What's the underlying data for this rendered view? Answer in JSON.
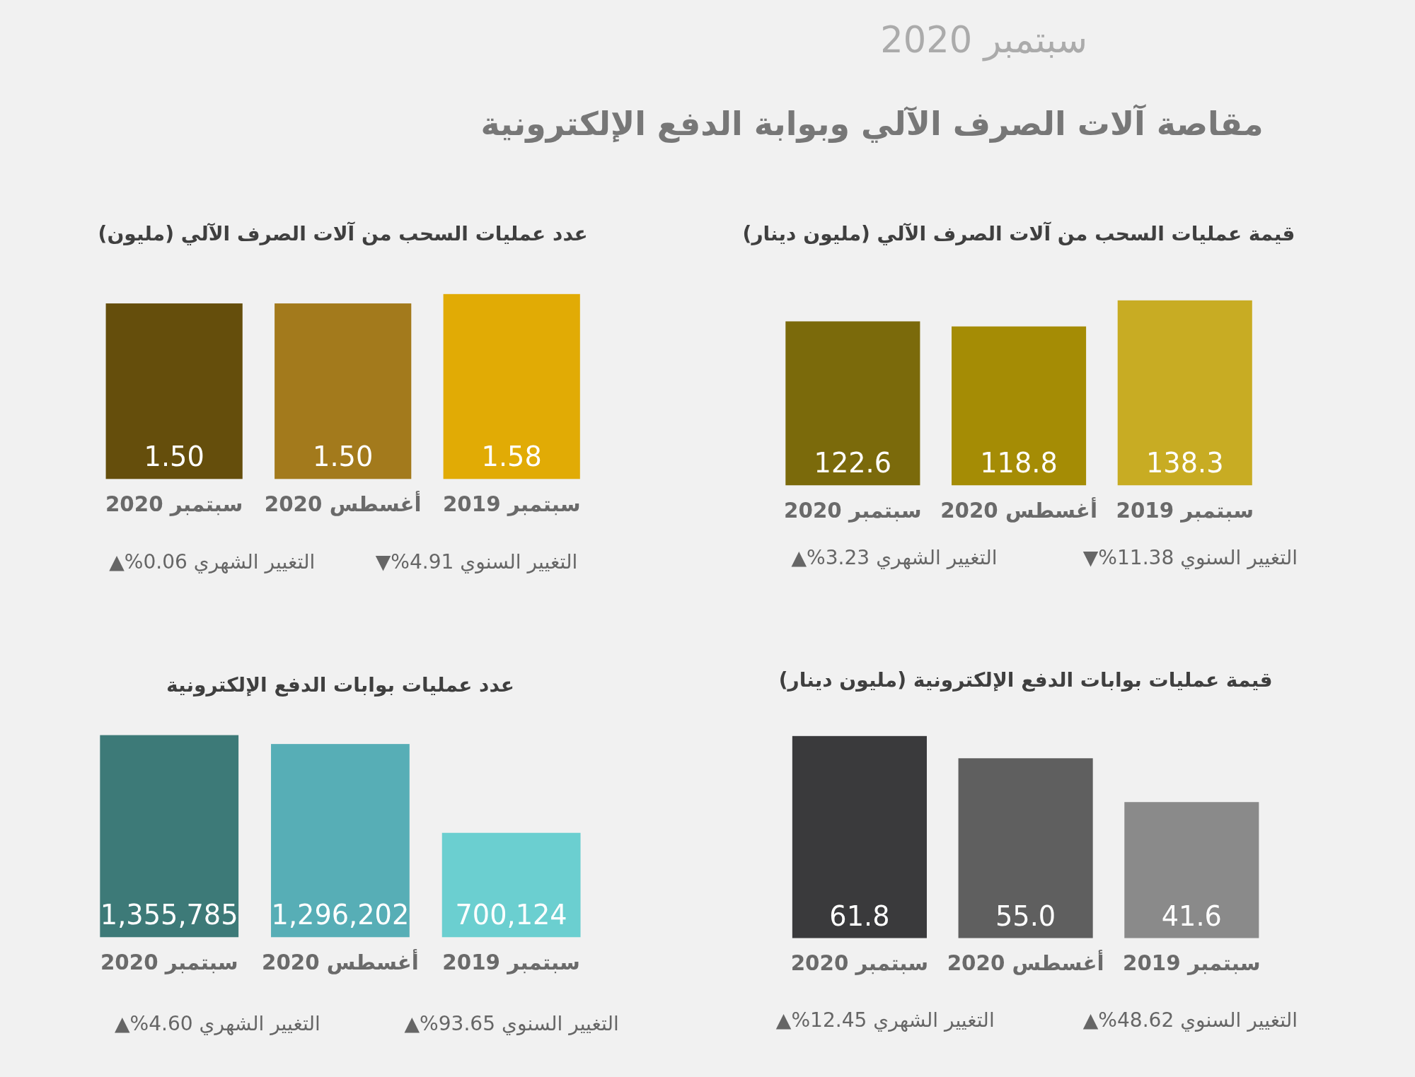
{
  "chart_data": [
    {
      "type": "other",
      "title": "مقاصة آلات الصرف الآلي وبوابة الدفع الإلكترونية",
      "subtitle": "سبتمبر 2020"
    },
    {
      "type": "bar",
      "title": "قيمة عمليات السحب من آلات الصرف الآلي (مليون دينار)",
      "categories": [
        "سبتمبر 2020",
        "أغسطس 2020",
        "سبتمبر 2019"
      ],
      "values": [
        122.6,
        118.8,
        138.3
      ],
      "value_labels": [
        "122.6",
        "118.8",
        "138.3"
      ],
      "colors": [
        "#7b6a0b",
        "#a58c05",
        "#c8ac23"
      ],
      "tick_labels": "x",
      "annotations": [
        "التغيير الشهري 3.23%▲",
        "التغيير السنوي 11.38%▼"
      ]
    },
    {
      "type": "bar",
      "title": "عدد عمليات السحب من آلات الصرف الآلي (مليون)",
      "categories": [
        "سبتمبر 2020",
        "أغسطس 2020",
        "سبتمبر 2019"
      ],
      "values": [
        1.5,
        1.5,
        1.58
      ],
      "value_labels": [
        "1.50",
        "1.50",
        "1.58"
      ],
      "colors": [
        "#654e0c",
        "#a37a1c",
        "#e1ab05"
      ],
      "tick_labels": "x",
      "annotations": [
        "التغيير الشهري 0.06%▲",
        "التغيير السنوي 4.91%▼"
      ]
    },
    {
      "type": "bar",
      "title": "قيمة عمليات بوابات الدفع الإلكترونية (مليون دينار)",
      "categories": [
        "سبتمبر 2020",
        "أغسطس 2020",
        "سبتمبر 2019"
      ],
      "values": [
        61.8,
        55.0,
        41.6
      ],
      "value_labels": [
        "61.8",
        "55.0",
        "41.6"
      ],
      "colors": [
        "#3a3a3c",
        "#5f5f5f",
        "#8a8a8a"
      ],
      "tick_labels": "x",
      "annotations": [
        "التغيير الشهري 12.45%▲",
        "التغيير السنوي 48.62%▲"
      ]
    },
    {
      "type": "bar",
      "title": "عدد عمليات بوابات الدفع الإلكترونية",
      "categories": [
        "سبتمبر 2020",
        "أغسطس 2020",
        "سبتمبر 2019"
      ],
      "values": [
        1355785,
        1296202,
        700124
      ],
      "value_labels": [
        "1,355,785",
        "1,296,202",
        "700,124"
      ],
      "colors": [
        "#3d7a78",
        "#57aeb6",
        "#6bcfd0"
      ],
      "tick_labels": "x",
      "annotations": [
        "التغيير الشهري 4.60%▲",
        "التغيير السنوي 93.65%▲"
      ]
    }
  ]
}
